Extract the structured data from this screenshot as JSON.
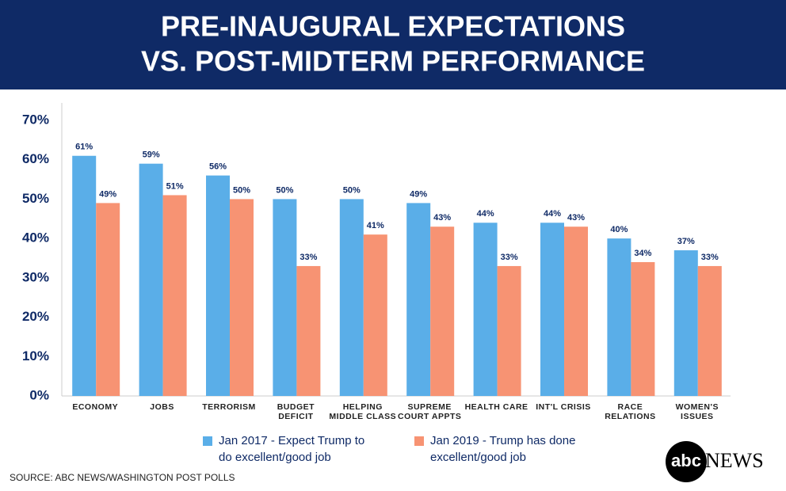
{
  "chart_data": {
    "type": "bar",
    "title": [
      "PRE-INAUGURAL EXPECTATIONS",
      "VS. POST-MIDTERM PERFORMANCE"
    ],
    "categories": [
      "ECONOMY",
      "JOBS",
      "TERRORISM",
      "BUDGET\nDEFICIT",
      "HELPING\nMIDDLE CLASS",
      "SUPREME\nCOURT APPTS",
      "HEALTH CARE",
      "INT'L CRISIS",
      "RACE\nRELATIONS",
      "WOMEN'S\nISSUES"
    ],
    "series": [
      {
        "name": "Jan 2017 - Expect Trump to\ndo excellent/good job",
        "color": "#5aaee8",
        "values": [
          61,
          59,
          56,
          50,
          50,
          49,
          44,
          44,
          40,
          37
        ],
        "value_labels": [
          "61%",
          "59%",
          "56%",
          "50%",
          "50%",
          "49%",
          "44%",
          "44%",
          "40%",
          "37%"
        ]
      },
      {
        "name": "Jan 2019 - Trump has done\nexcellent/good job",
        "color": "#f79373",
        "values": [
          49,
          51,
          50,
          33,
          41,
          43,
          33,
          43,
          34,
          33
        ],
        "value_labels": [
          "49%",
          "51%",
          "50%",
          "33%",
          "41%",
          "43%",
          "33%",
          "43%",
          "34%",
          "33%"
        ]
      }
    ],
    "ylim": [
      0,
      70
    ],
    "yticks": [
      {
        "value": 0,
        "label": "0%"
      },
      {
        "value": 10,
        "label": "10%"
      },
      {
        "value": 20,
        "label": "20%"
      },
      {
        "value": 30,
        "label": "30%"
      },
      {
        "value": 40,
        "label": "40%"
      },
      {
        "value": 50,
        "label": "50%"
      },
      {
        "value": 60,
        "label": "60%"
      },
      {
        "value": 70,
        "label": "70%"
      }
    ],
    "source": "SOURCE: ABC NEWS/WASHINGTON POST POLLS",
    "logo": "abc",
    "logo_text": "NEWS"
  }
}
